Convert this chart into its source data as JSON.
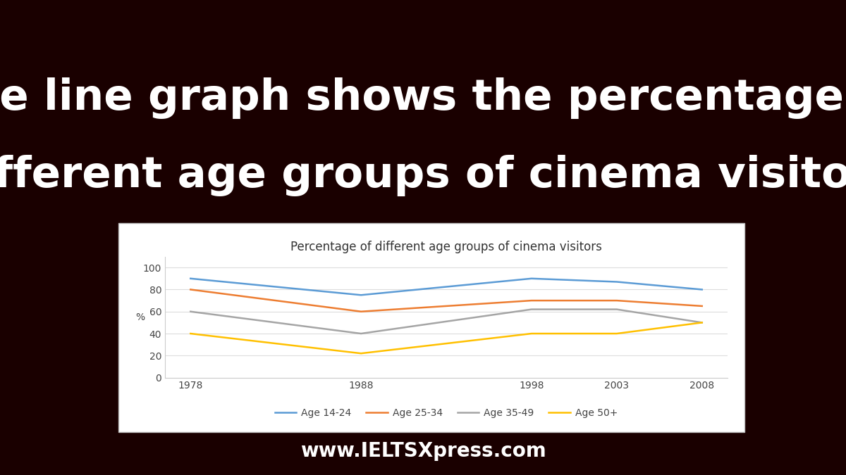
{
  "title": "Percentage of different age groups of cinema visitors",
  "main_title_line1": "The line graph shows the percentage of",
  "main_title_line2": "different age groups of cinema visitors",
  "footer": "www.IELTSXpress.com",
  "years": [
    1978,
    1988,
    1998,
    2003,
    2008
  ],
  "series": {
    "Age 14-24": [
      90,
      75,
      90,
      87,
      80
    ],
    "Age 25-34": [
      80,
      60,
      70,
      70,
      65
    ],
    "Age 35-49": [
      60,
      40,
      62,
      62,
      50
    ],
    "Age 50+": [
      40,
      22,
      40,
      40,
      50
    ]
  },
  "colors": {
    "Age 14-24": "#5b9bd5",
    "Age 25-34": "#ed7d31",
    "Age 35-49": "#a5a5a5",
    "Age 50+": "#ffc000"
  },
  "ylabel": "%",
  "ylim": [
    0,
    110
  ],
  "yticks": [
    0,
    20,
    40,
    60,
    80,
    100
  ],
  "background_color": "#1a0000",
  "chart_bg": "#ffffff",
  "panel_bg": "#ffffff",
  "title_color": "#ffffff",
  "footer_color": "#ffffff",
  "main_title_fontsize": 44,
  "chart_title_fontsize": 12,
  "axis_fontsize": 10,
  "legend_fontsize": 10,
  "footer_fontsize": 20
}
